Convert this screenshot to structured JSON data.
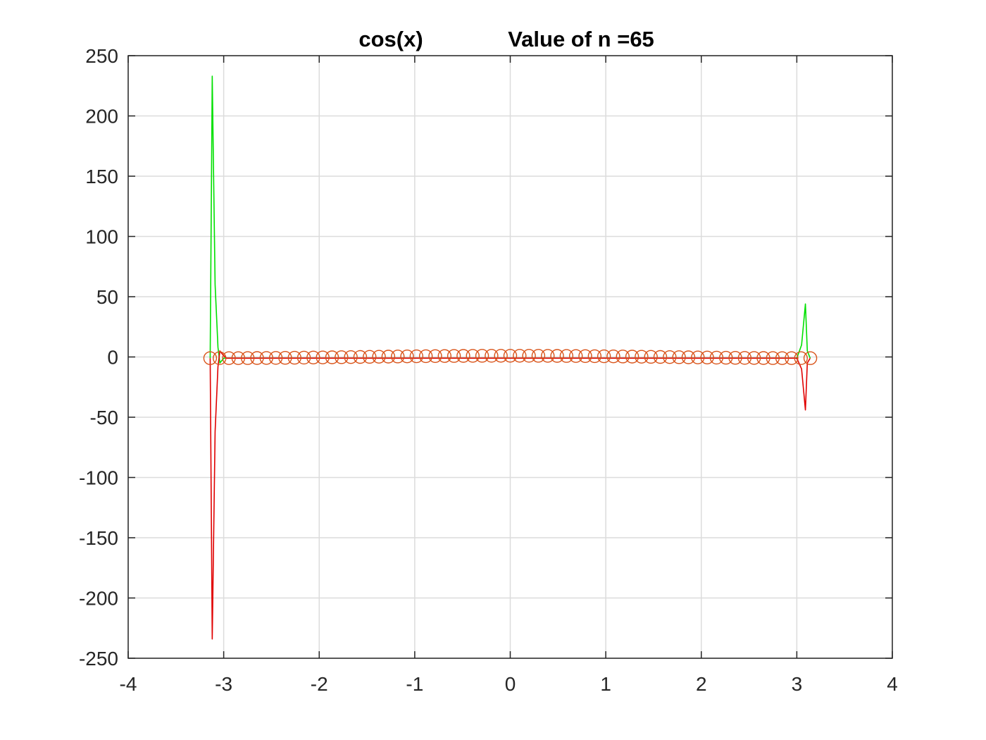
{
  "chart_data": {
    "type": "line",
    "title_left": "cos(x)",
    "title_right": "Value of n =65",
    "xlabel": "",
    "ylabel": "",
    "xlim": [
      -4,
      4
    ],
    "ylim": [
      -250,
      250
    ],
    "xticks": [
      -4,
      -3,
      -2,
      -1,
      0,
      1,
      2,
      3,
      4
    ],
    "yticks": [
      250,
      200,
      150,
      100,
      50,
      0,
      -50,
      -100,
      -150,
      -200,
      -250
    ],
    "xtick_labels": [
      "-4",
      "-3",
      "-2",
      "-1",
      "0",
      "1",
      "2",
      "3",
      "4"
    ],
    "ytick_labels": [
      "250",
      "200",
      "150",
      "100",
      "50",
      "0",
      "-50",
      "-100",
      "-150",
      "-200",
      "-250"
    ],
    "grid": true,
    "legend": "none",
    "series": [
      {
        "style": "markers-only",
        "marker": "circle",
        "color": "#d95319",
        "description_points": "cos(x) sampled at 65 equally spaced nodes on [-pi, pi]",
        "x": [
          -3.1416,
          -3.0434,
          -2.9452,
          -2.8471,
          -2.7489,
          -2.6507,
          -2.5525,
          -2.4544,
          -2.3562,
          -2.258,
          -2.1598,
          -2.0617,
          -1.9635,
          -1.8653,
          -1.7671,
          -1.669,
          -1.5708,
          -1.4726,
          -1.3744,
          -1.2763,
          -1.1781,
          -1.0799,
          -0.9817,
          -0.8836,
          -0.7854,
          -0.6872,
          -0.589,
          -0.4909,
          -0.3927,
          -0.2945,
          -0.1963,
          -0.0982,
          0,
          0.0982,
          0.1963,
          0.2945,
          0.3927,
          0.4909,
          0.589,
          0.6872,
          0.7854,
          0.8836,
          0.9817,
          1.0799,
          1.1781,
          1.2763,
          1.3744,
          1.4726,
          1.5708,
          1.669,
          1.7671,
          1.8653,
          1.9635,
          2.0617,
          2.1598,
          2.258,
          2.3562,
          2.4544,
          2.5525,
          2.6507,
          2.7489,
          2.8471,
          2.9452,
          3.0434,
          3.1416
        ],
        "y": [
          -1,
          -0.995,
          -0.981,
          -0.957,
          -0.924,
          -0.882,
          -0.831,
          -0.773,
          -0.707,
          -0.634,
          -0.556,
          -0.471,
          -0.383,
          -0.29,
          -0.195,
          -0.098,
          0,
          0.098,
          0.195,
          0.29,
          0.383,
          0.471,
          0.556,
          0.634,
          0.707,
          0.773,
          0.831,
          0.882,
          0.924,
          0.957,
          0.981,
          0.995,
          1,
          0.995,
          0.981,
          0.957,
          0.924,
          0.882,
          0.831,
          0.773,
          0.707,
          0.634,
          0.556,
          0.471,
          0.383,
          0.29,
          0.195,
          0.098,
          0,
          -0.098,
          -0.195,
          -0.29,
          -0.383,
          -0.471,
          -0.556,
          -0.634,
          -0.707,
          -0.773,
          -0.831,
          -0.882,
          -0.924,
          -0.957,
          -0.981,
          -0.995,
          -1
        ]
      },
      {
        "style": "line",
        "color": "#00e000",
        "x": [
          -3.1416,
          -3.12,
          -3.09,
          -3.06,
          -3.04,
          -3.02,
          -3.0,
          -2.97,
          -2.9,
          3.0,
          3.05,
          3.09,
          3.11,
          3.14
        ],
        "y": [
          -1,
          233,
          60,
          8,
          -5,
          -3,
          -1,
          -1,
          -1,
          -1,
          10,
          44,
          5,
          -1
        ]
      },
      {
        "style": "line",
        "color": "#e00000",
        "x": [
          -3.1416,
          -3.12,
          -3.09,
          -3.06,
          -3.04,
          -3.02,
          -3.0,
          -2.97,
          -2.9,
          3.0,
          3.05,
          3.09,
          3.11,
          3.14
        ],
        "y": [
          -1,
          -234,
          -62,
          -8,
          5,
          3,
          1,
          -1,
          -1,
          -1,
          -10,
          -44,
          -5,
          -1
        ]
      }
    ]
  }
}
